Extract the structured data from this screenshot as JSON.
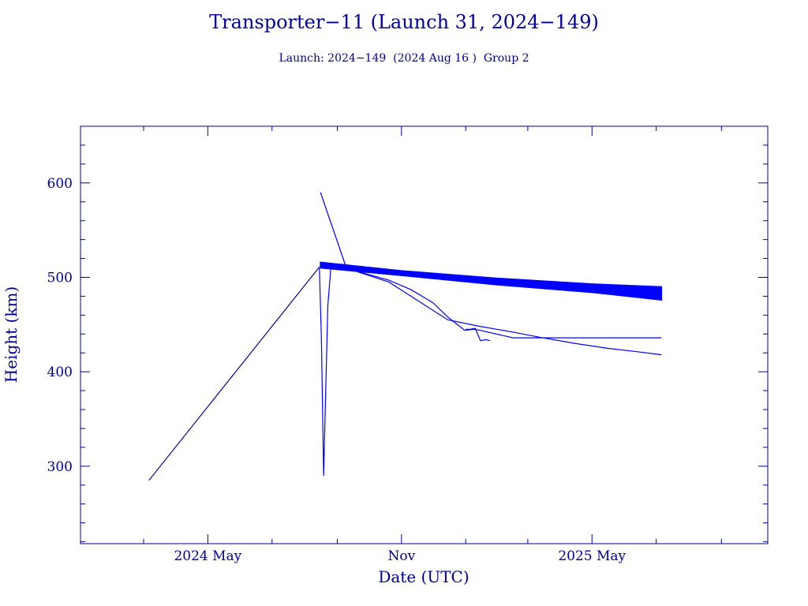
{
  "chart_data": {
    "type": "line",
    "title": "Transporter−11 (Launch 31, 2024−149)",
    "subtitle": "Launch: 2024−149  (2024 Aug 16 )  Group 2",
    "xlabel": "Date (UTC)",
    "ylabel": "Height (km)",
    "xlim": [
      "2024-01-01",
      "2025-10-15"
    ],
    "ylim": [
      218,
      660
    ],
    "x_tick_labels": [
      {
        "date": "2024-05-01",
        "label": "2024 May"
      },
      {
        "date": "2024-11-01",
        "label": "Nov"
      },
      {
        "date": "2025-05-01",
        "label": "2025 May"
      }
    ],
    "y_ticks": [
      300,
      400,
      500,
      600
    ],
    "grid": false,
    "colors": {
      "frame": "#0000a0",
      "series": "#0000ff"
    },
    "band": {
      "upper": [
        [
          "2024-08-16",
          516
        ],
        [
          "2024-11-01",
          507
        ],
        [
          "2025-02-01",
          499
        ],
        [
          "2025-05-01",
          493
        ],
        [
          "2025-07-06",
          490
        ]
      ],
      "lower": [
        [
          "2024-08-16",
          510
        ],
        [
          "2024-11-01",
          502
        ],
        [
          "2025-02-01",
          492
        ],
        [
          "2025-05-01",
          484
        ],
        [
          "2025-07-06",
          476
        ]
      ]
    },
    "series": [
      {
        "x": [
          "2024-03-06",
          "2024-08-15"
        ],
        "y": [
          285,
          511
        ]
      },
      {
        "x": [
          "2024-08-15",
          "2024-08-17",
          "2024-08-19",
          "2024-08-21",
          "2024-08-23",
          "2024-08-26"
        ],
        "y": [
          510,
          430,
          290,
          380,
          470,
          512
        ]
      },
      {
        "x": [
          "2024-08-16",
          "2024-09-09"
        ],
        "y": [
          590,
          512
        ]
      },
      {
        "x": [
          "2024-09-09",
          "2024-10-01",
          "2024-10-20",
          "2024-11-10",
          "2024-12-01",
          "2024-12-15",
          "2024-12-31",
          "2025-01-10",
          "2025-02-15",
          "2025-03-15",
          "2025-05-01",
          "2025-06-01",
          "2025-07-06"
        ],
        "y": [
          510,
          503,
          497,
          487,
          473,
          458,
          444,
          445,
          436,
          436,
          436,
          436,
          436
        ]
      },
      {
        "x": [
          "2024-09-09",
          "2024-10-20",
          "2024-11-10",
          "2024-12-15",
          "2025-01-15",
          "2025-02-15",
          "2025-03-15",
          "2025-04-15",
          "2025-05-15",
          "2025-06-15",
          "2025-07-06"
        ],
        "y": [
          510,
          495,
          480,
          455,
          448,
          442,
          436,
          430,
          425,
          421,
          418
        ]
      },
      {
        "x": [
          "2025-01-01",
          "2025-01-05",
          "2025-01-10",
          "2025-01-15",
          "2025-01-20",
          "2025-01-24"
        ],
        "y": [
          445,
          445,
          446,
          433,
          434,
          433
        ]
      }
    ]
  }
}
